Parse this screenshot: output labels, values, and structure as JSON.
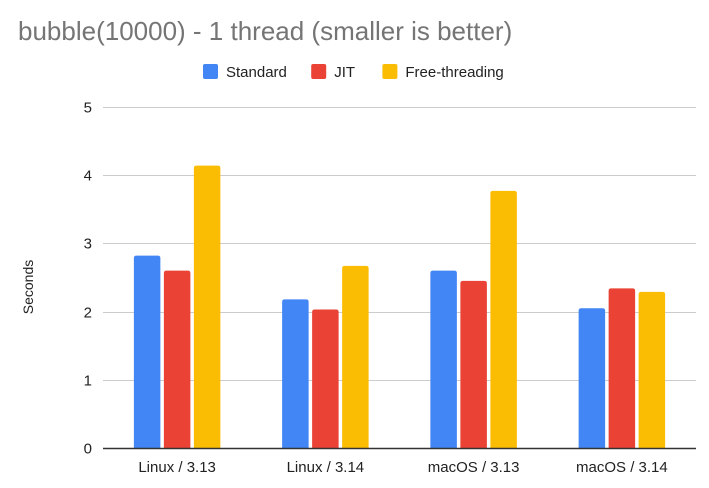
{
  "chart_data": {
    "type": "bar",
    "title": "bubble(10000) - 1 thread (smaller is better)",
    "xlabel": "",
    "ylabel": "Seconds",
    "ylim": [
      0,
      5
    ],
    "yticks": [
      0,
      1,
      2,
      3,
      4,
      5
    ],
    "grid": true,
    "legend_position": "top",
    "categories": [
      "Linux / 3.13",
      "Linux / 3.14",
      "macOS / 3.13",
      "macOS / 3.14"
    ],
    "series": [
      {
        "name": "Standard",
        "color": "#4285f4",
        "values": [
          2.82,
          2.18,
          2.6,
          2.05
        ]
      },
      {
        "name": "JIT",
        "color": "#ea4335",
        "values": [
          2.6,
          2.03,
          2.45,
          2.34
        ]
      },
      {
        "name": "Free-threading",
        "color": "#fbbc04",
        "values": [
          4.14,
          2.67,
          3.77,
          2.29
        ]
      }
    ]
  }
}
